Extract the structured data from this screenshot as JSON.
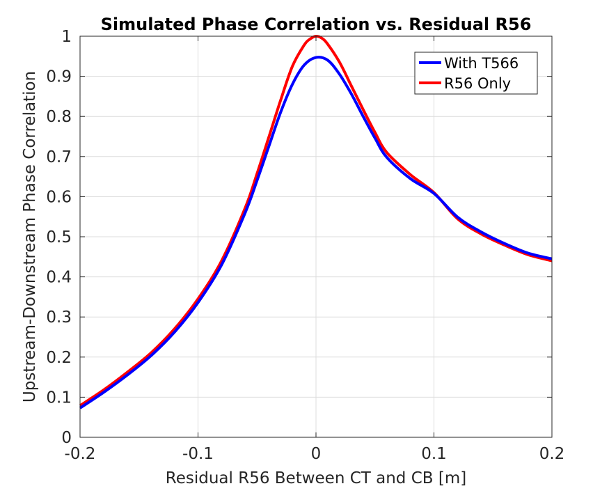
{
  "chart_data": {
    "type": "line",
    "title": "Simulated Phase Correlation vs. Residual R56",
    "xlabel": "Residual R56 Between CT and CB [m]",
    "ylabel": "Upstream-Downstream Phase Correlation",
    "xlim": [
      -0.2,
      0.2
    ],
    "ylim": [
      0,
      1
    ],
    "xticks": [
      -0.2,
      -0.1,
      0,
      0.1,
      0.2
    ],
    "xtick_labels": [
      "-0.2",
      "-0.1",
      "0",
      "0.1",
      "0.2"
    ],
    "yticks": [
      0,
      0.1,
      0.2,
      0.3,
      0.4,
      0.5,
      0.6,
      0.7,
      0.8,
      0.9,
      1
    ],
    "ytick_labels": [
      "0",
      "0.1",
      "0.2",
      "0.3",
      "0.4",
      "0.5",
      "0.6",
      "0.7",
      "0.8",
      "0.9",
      "1"
    ],
    "grid": true,
    "legend_position": "top-right",
    "series": [
      {
        "name": "With T566",
        "color": "#0000ff",
        "x": [
          -0.2,
          -0.18,
          -0.16,
          -0.14,
          -0.12,
          -0.1,
          -0.08,
          -0.06,
          -0.05,
          -0.04,
          -0.03,
          -0.02,
          -0.01,
          0,
          0.01,
          0.02,
          0.03,
          0.04,
          0.05,
          0.06,
          0.08,
          0.1,
          0.12,
          0.14,
          0.16,
          0.18,
          0.2
        ],
        "y": [
          0.073,
          0.112,
          0.155,
          0.203,
          0.262,
          0.336,
          0.43,
          0.56,
          0.64,
          0.725,
          0.81,
          0.88,
          0.928,
          0.947,
          0.94,
          0.905,
          0.856,
          0.8,
          0.746,
          0.698,
          0.645,
          0.608,
          0.549,
          0.512,
          0.483,
          0.459,
          0.445
        ]
      },
      {
        "name": "R56 Only",
        "color": "#ff0000",
        "x": [
          -0.2,
          -0.18,
          -0.16,
          -0.14,
          -0.12,
          -0.1,
          -0.08,
          -0.06,
          -0.05,
          -0.04,
          -0.03,
          -0.02,
          -0.01,
          -0.005,
          0,
          0.005,
          0.01,
          0.02,
          0.03,
          0.04,
          0.05,
          0.06,
          0.08,
          0.1,
          0.12,
          0.14,
          0.16,
          0.18,
          0.2
        ],
        "y": [
          0.079,
          0.118,
          0.162,
          0.21,
          0.27,
          0.345,
          0.44,
          0.572,
          0.657,
          0.748,
          0.84,
          0.925,
          0.978,
          0.993,
          1.0,
          0.995,
          0.98,
          0.935,
          0.876,
          0.817,
          0.76,
          0.71,
          0.655,
          0.61,
          0.545,
          0.507,
          0.479,
          0.455,
          0.44
        ]
      }
    ]
  }
}
